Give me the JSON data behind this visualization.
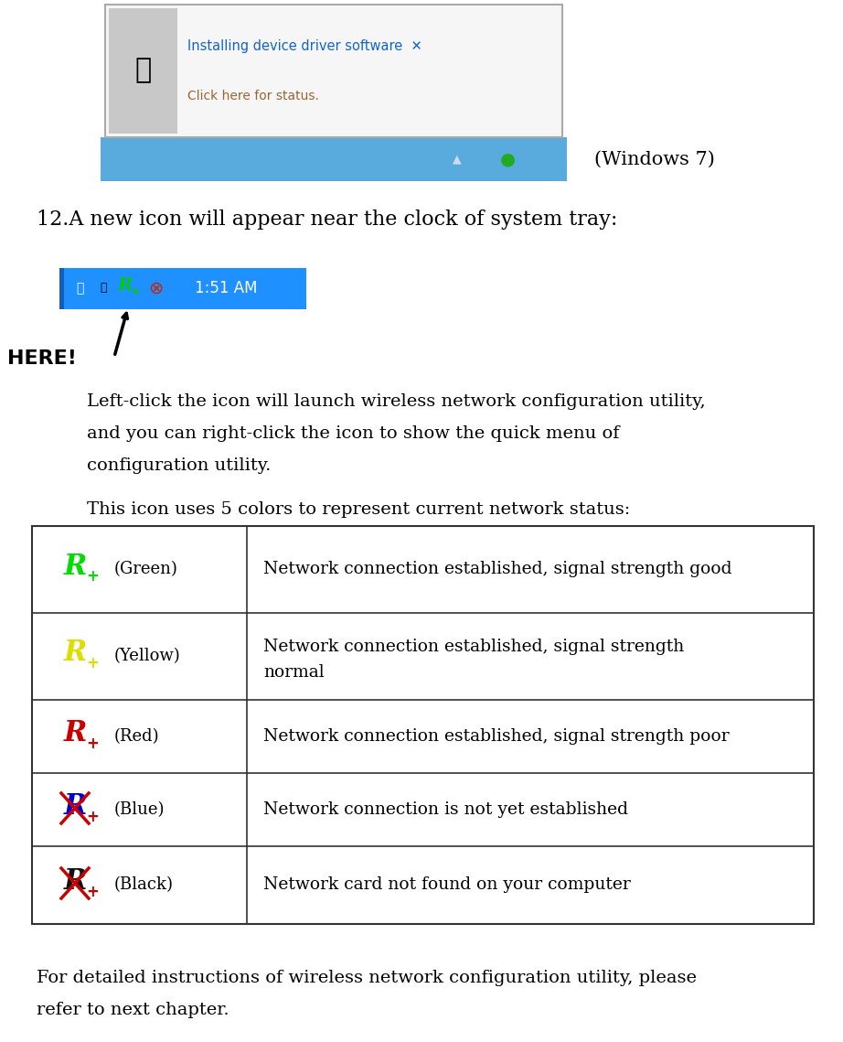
{
  "bg_color": "#ffffff",
  "windows7_label": "(Windows 7)",
  "step12_text": "12.A new icon will appear near the clock of system tray:",
  "taskbar_time": "1:51 AM",
  "here_label": "HERE!",
  "left_click_line1": "Left-click the icon will launch wireless network configuration utility,",
  "left_click_line2": "and you can right-click the icon to show the quick menu of",
  "left_click_line3": "configuration utility.",
  "colors_intro": "This icon uses 5 colors to represent current network status:",
  "table_rows": [
    {
      "color": "#00dd00",
      "color_name": "Green",
      "description": "Network connection established, signal strength good",
      "crossed": false
    },
    {
      "color": "#dddd00",
      "color_name": "Yellow",
      "description": "Network connection established, signal strength\nnormal",
      "crossed": false
    },
    {
      "color": "#cc0000",
      "color_name": "Red",
      "description": "Network connection established, signal strength poor",
      "crossed": false
    },
    {
      "color": "#0000cc",
      "color_name": "Blue",
      "description": "Network connection is not yet established",
      "crossed": true
    },
    {
      "color": "#111111",
      "color_name": "Black",
      "description": "Network card not found on your computer",
      "crossed": true
    }
  ],
  "footer_line1": "For detailed instructions of wireless network configuration utility, please",
  "footer_line2": "refer to next chapter.",
  "taskbar_bg": "#5aabdd",
  "popup_bg": "#f5f5f5",
  "popup_border": "#aaaaaa",
  "title_color": "#1464c8",
  "subtitle_color": "#996633"
}
